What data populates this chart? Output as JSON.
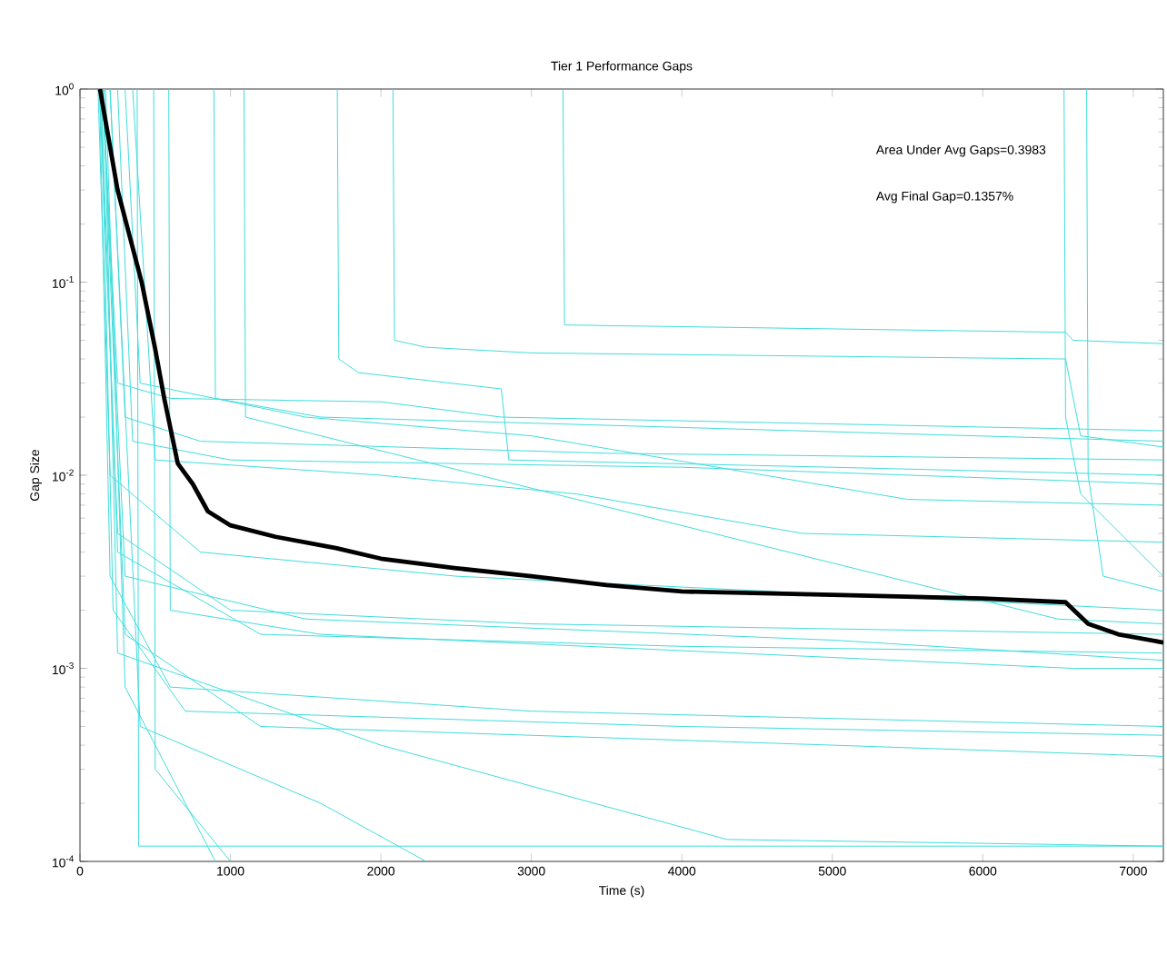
{
  "chart_data": {
    "type": "step",
    "title": "Tier 1 Performance Gaps",
    "xlabel": "Time (s)",
    "ylabel": "Gap Size",
    "annotations": [
      "Area Under Avg Gaps=0.3983",
      "Avg Final Gap=0.1357%"
    ],
    "log": "y",
    "xlim": [
      0,
      7200
    ],
    "ylim": [
      0.0001,
      1
    ],
    "xticks": [
      0,
      1000,
      2000,
      3000,
      4000,
      5000,
      6000,
      7000
    ],
    "yticks": [
      {
        "value": 0.0001,
        "label": "10$^{-4}$"
      },
      {
        "value": 0.001,
        "label": "10$^{-3}$"
      },
      {
        "value": 0.01,
        "label": "10$^{-2}$"
      },
      {
        "value": 0.1,
        "label": "10$^{-1}$"
      },
      {
        "value": 1,
        "label": "10$^{0}$"
      }
    ],
    "series": [
      {
        "color": "#40dcdc",
        "x": [
          3210,
          3220,
          6550,
          6600,
          7200
        ],
        "values": [
          1,
          0.06,
          0.055,
          0.05,
          0.048
        ]
      },
      {
        "color": "#40dcdc",
        "x": [
          2080,
          2090,
          2300,
          3000,
          6550,
          6650,
          7200
        ],
        "values": [
          1,
          0.05,
          0.046,
          0.043,
          0.04,
          0.016,
          0.014
        ]
      },
      {
        "color": "#40dcdc",
        "x": [
          1710,
          1720,
          1850,
          2800,
          2850,
          5000,
          7200
        ],
        "values": [
          1,
          0.04,
          0.034,
          0.028,
          0.012,
          0.011,
          0.01
        ]
      },
      {
        "color": "#40dcdc",
        "x": [
          6540,
          6550,
          6650,
          7200
        ],
        "values": [
          1,
          0.02,
          0.008,
          0.003
        ]
      },
      {
        "color": "#40dcdc",
        "x": [
          6690,
          6700,
          6800,
          7200
        ],
        "values": [
          1,
          0.01,
          0.003,
          0.0025
        ]
      },
      {
        "type": "step",
        "color": "#40dcdc",
        "x": [
          150,
          250,
          600,
          2000,
          2800,
          7200
        ],
        "values": [
          1,
          0.03,
          0.025,
          0.024,
          0.02,
          0.017
        ]
      },
      {
        "type": "step",
        "color": "#40dcdc",
        "x": [
          200,
          300,
          800,
          3500,
          7200
        ],
        "values": [
          1,
          0.02,
          0.015,
          0.013,
          0.012
        ]
      },
      {
        "type": "step",
        "color": "#40dcdc",
        "x": [
          250,
          350,
          1000,
          4000,
          7200
        ],
        "values": [
          1,
          0.015,
          0.012,
          0.011,
          0.009
        ]
      },
      {
        "type": "step",
        "color": "#40dcdc",
        "x": [
          300,
          400,
          1500,
          3000,
          5500,
          7200
        ],
        "values": [
          1,
          0.03,
          0.02,
          0.016,
          0.0075,
          0.007
        ]
      },
      {
        "type": "step",
        "color": "#40dcdc",
        "x": [
          350,
          500,
          2000,
          3300,
          4800,
          7200
        ],
        "values": [
          1,
          0.012,
          0.01,
          0.008,
          0.005,
          0.0045
        ]
      },
      {
        "type": "step",
        "color": "#40dcdc",
        "x": [
          120,
          200,
          800,
          2500,
          7200
        ],
        "values": [
          1,
          0.01,
          0.004,
          0.003,
          0.002
        ]
      },
      {
        "type": "step",
        "color": "#40dcdc",
        "x": [
          130,
          250,
          1000,
          3000,
          7200
        ],
        "values": [
          1,
          0.005,
          0.002,
          0.0017,
          0.0015
        ]
      },
      {
        "type": "step",
        "color": "#40dcdc",
        "x": [
          140,
          250,
          1200,
          4000,
          7200
        ],
        "values": [
          1,
          0.004,
          0.0015,
          0.0013,
          0.0012
        ]
      },
      {
        "type": "step",
        "color": "#40dcdc",
        "x": [
          150,
          300,
          1500,
          5000,
          7200
        ],
        "values": [
          1,
          0.003,
          0.0018,
          0.0014,
          0.0011
        ]
      },
      {
        "type": "step",
        "color": "#40dcdc",
        "x": [
          130,
          200,
          600,
          3000,
          7200
        ],
        "values": [
          1,
          0.003,
          0.0008,
          0.0006,
          0.0005
        ]
      },
      {
        "type": "step",
        "color": "#40dcdc",
        "x": [
          140,
          220,
          700,
          4000,
          7200
        ],
        "values": [
          1,
          0.002,
          0.0006,
          0.0005,
          0.00045
        ]
      },
      {
        "type": "step",
        "color": "#40dcdc",
        "x": [
          150,
          300,
          1200,
          5000,
          7200
        ],
        "values": [
          1,
          0.0015,
          0.0005,
          0.0004,
          0.00035
        ]
      },
      {
        "type": "step",
        "color": "#40dcdc",
        "x": [
          160,
          250,
          2000,
          4300,
          7200
        ],
        "values": [
          1,
          0.0012,
          0.0004,
          0.00013,
          0.00012
        ]
      },
      {
        "type": "step",
        "color": "#40dcdc",
        "x": [
          170,
          300,
          900
        ],
        "values": [
          1,
          0.0008,
          0.0001
        ]
      },
      {
        "color": "#40dcdc",
        "x": [
          380,
          390,
          7200
        ],
        "values": [
          1,
          0.00012,
          0.00012
        ]
      },
      {
        "type": "step",
        "color": "#40dcdc",
        "x": [
          200,
          400,
          1600,
          2300
        ],
        "values": [
          1,
          0.0005,
          0.0002,
          0.0001
        ]
      },
      {
        "color": "#40dcdc",
        "x": [
          590,
          600,
          1600,
          6600,
          7200
        ],
        "values": [
          1,
          0.002,
          0.0015,
          0.001,
          0.001
        ]
      },
      {
        "color": "#40dcdc",
        "x": [
          490,
          500,
          1000
        ],
        "values": [
          1,
          0.0003,
          0.0001
        ]
      },
      {
        "color": "#40dcdc",
        "x": [
          890,
          900,
          1600,
          7200
        ],
        "values": [
          1,
          0.025,
          0.02,
          0.015
        ]
      },
      {
        "color": "#40dcdc",
        "x": [
          1090,
          1100,
          6500,
          7200
        ],
        "values": [
          1,
          0.02,
          0.0018,
          0.0017
        ]
      },
      {
        "type": "line",
        "color": "#000000",
        "x": [
          133,
          250,
          410,
          500,
          560,
          650,
          750,
          850,
          1000,
          1300,
          1700,
          2000,
          2500,
          3000,
          3500,
          4000,
          5000,
          6000,
          6550,
          6700,
          6900,
          7200
        ],
        "values": [
          1,
          0.3,
          0.1,
          0.045,
          0.025,
          0.0115,
          0.009,
          0.0065,
          0.0055,
          0.0048,
          0.0042,
          0.0037,
          0.0033,
          0.003,
          0.0027,
          0.0025,
          0.0024,
          0.0023,
          0.0022,
          0.0017,
          0.0015,
          0.00136
        ]
      }
    ]
  }
}
